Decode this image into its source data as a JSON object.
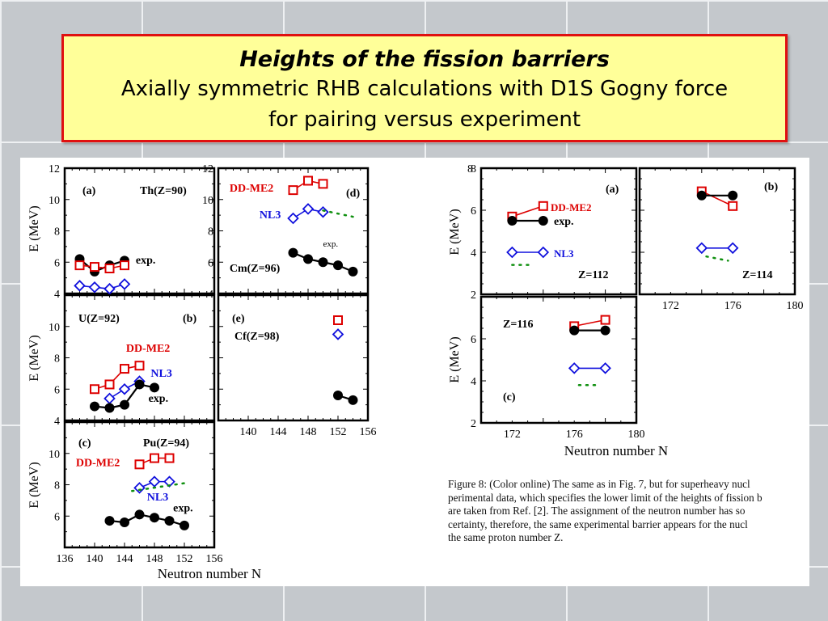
{
  "title": {
    "line1": "Heights of the fission barriers",
    "line2": "Axially symmetric RHB calculations with D1S Gogny force",
    "line3": "for pairing versus experiment"
  },
  "caption_lines": [
    "Figure 8: (Color online) The same as in Fig. 7, but for superheavy nucl",
    "perimental data, which specifies the lower limit of the heights of fission b",
    "are taken from Ref. [2].  The assignment of the neutron number has so",
    "certainty, therefore, the same experimental barrier appears for the nucl",
    "the same proton number Z."
  ],
  "colors": {
    "exp": "#000000",
    "ddme2": "#dd0000",
    "nl3": "#1010dd",
    "gogny": "#109010"
  },
  "chart_data": [
    {
      "type": "scatter",
      "group": "left",
      "xlabel": "Neutron number N",
      "ylabel": "E (MeV)",
      "xlim": [
        136,
        156
      ],
      "x_ticks": [
        "136",
        "140",
        "144",
        "148",
        "152",
        "156"
      ],
      "panels": [
        {
          "id": "a",
          "tag": "(a)",
          "label": "Th(Z=90)",
          "ylim": [
            4,
            12
          ],
          "y_ticks": [
            "4",
            "6",
            "8",
            "10",
            "12"
          ],
          "series": [
            {
              "name": "exp.",
              "marker": "circle",
              "points": [
                [
                  138,
                  6.2
                ],
                [
                  140,
                  5.4
                ],
                [
                  142,
                  5.8
                ],
                [
                  144,
                  6.1
                ]
              ]
            },
            {
              "name": "DD-ME2",
              "marker": "square",
              "points": [
                [
                  138,
                  5.8
                ],
                [
                  140,
                  5.7
                ],
                [
                  142,
                  5.6
                ],
                [
                  144,
                  5.8
                ]
              ]
            },
            {
              "name": "NL3",
              "marker": "diamond",
              "points": [
                [
                  138,
                  4.5
                ],
                [
                  140,
                  4.4
                ],
                [
                  142,
                  4.3
                ],
                [
                  144,
                  4.6
                ]
              ]
            }
          ],
          "annotations": [
            {
              "text": "exp.",
              "x": 145.5,
              "y": 5.9
            }
          ]
        },
        {
          "id": "d",
          "tag": "(d)",
          "label": "Cm(Z=96)",
          "ylim": [
            4,
            12
          ],
          "y_ticks": [
            "4",
            "6",
            "8",
            "10",
            "12"
          ],
          "series": [
            {
              "name": "DD-ME2",
              "marker": "square",
              "points": [
                [
                  146,
                  10.6
                ],
                [
                  148,
                  11.2
                ],
                [
                  150,
                  11.0
                ]
              ]
            },
            {
              "name": "NL3",
              "marker": "diamond",
              "points": [
                [
                  146,
                  8.8
                ],
                [
                  148,
                  9.4
                ],
                [
                  150,
                  9.2
                ]
              ]
            },
            {
              "name": "exp.",
              "marker": "circle",
              "points": [
                [
                  146,
                  6.6
                ],
                [
                  148,
                  6.2
                ],
                [
                  150,
                  6.0
                ],
                [
                  152,
                  5.8
                ],
                [
                  154,
                  5.4
                ]
              ]
            },
            {
              "name": "",
              "marker": "dotted",
              "points": [
                [
                  150,
                  9.3
                ],
                [
                  154,
                  8.9
                ]
              ]
            }
          ],
          "annotations": [
            {
              "text": "DD-ME2",
              "x": 137.5,
              "y": 10.5
            },
            {
              "text": "NL3",
              "x": 141.5,
              "y": 8.8
            },
            {
              "text": "exp.",
              "x": 150,
              "y": 7.0
            },
            {
              "text": "Cm(Z=96)",
              "x": 137.5,
              "y": 5.4
            }
          ]
        },
        {
          "id": "b",
          "tag": "(b)",
          "label": "U(Z=92)",
          "ylim": [
            4,
            12
          ],
          "y_ticks": [
            "4",
            "6",
            "8",
            "10"
          ],
          "series": [
            {
              "name": "DD-ME2",
              "marker": "square",
              "points": [
                [
                  140,
                  6.0
                ],
                [
                  142,
                  6.3
                ],
                [
                  144,
                  7.3
                ],
                [
                  146,
                  7.5
                ]
              ]
            },
            {
              "name": "NL3",
              "marker": "diamond",
              "points": [
                [
                  142,
                  5.4
                ],
                [
                  144,
                  6.0
                ],
                [
                  146,
                  6.5
                ]
              ]
            },
            {
              "name": "exp.",
              "marker": "circle",
              "points": [
                [
                  140,
                  4.9
                ],
                [
                  142,
                  4.8
                ],
                [
                  144,
                  5.0
                ],
                [
                  146,
                  6.3
                ],
                [
                  148,
                  6.1
                ]
              ]
            }
          ],
          "annotations": [
            {
              "text": "DD-ME2",
              "x": 144.2,
              "y": 8.4
            },
            {
              "text": "NL3",
              "x": 147.5,
              "y": 6.8
            },
            {
              "text": "exp.",
              "x": 147.2,
              "y": 5.2
            }
          ]
        },
        {
          "id": "e",
          "tag": "(e)",
          "label": "Cf(Z=98)",
          "ylim": [
            4,
            12
          ],
          "y_ticks": [],
          "series": [
            {
              "name": "DD-ME2",
              "marker": "square",
              "points": [
                [
                  152,
                  10.4
                ]
              ]
            },
            {
              "name": "NL3",
              "marker": "diamond",
              "points": [
                [
                  152,
                  9.5
                ]
              ]
            },
            {
              "name": "exp.",
              "marker": "circle",
              "points": [
                [
                  152,
                  5.6
                ],
                [
                  154,
                  5.3
                ]
              ]
            }
          ],
          "annotations": []
        },
        {
          "id": "c",
          "tag": "(c)",
          "label": "Pu(Z=94)",
          "ylim": [
            4,
            12
          ],
          "y_ticks": [
            "6",
            "8",
            "10"
          ],
          "series": [
            {
              "name": "DD-ME2",
              "marker": "square",
              "points": [
                [
                  146,
                  9.3
                ],
                [
                  148,
                  9.7
                ],
                [
                  150,
                  9.7
                ]
              ]
            },
            {
              "name": "NL3",
              "marker": "diamond",
              "points": [
                [
                  146,
                  7.8
                ],
                [
                  148,
                  8.2
                ],
                [
                  150,
                  8.2
                ]
              ]
            },
            {
              "name": "",
              "marker": "dotted",
              "points": [
                [
                  145,
                  7.6
                ],
                [
                  152,
                  8.1
                ]
              ]
            },
            {
              "name": "exp.",
              "marker": "circle",
              "points": [
                [
                  142,
                  5.7
                ],
                [
                  144,
                  5.6
                ],
                [
                  146,
                  6.1
                ],
                [
                  148,
                  5.9
                ],
                [
                  150,
                  5.7
                ],
                [
                  152,
                  5.4
                ]
              ]
            }
          ],
          "annotations": [
            {
              "text": "DD-ME2",
              "x": 137.5,
              "y": 9.2
            },
            {
              "text": "NL3",
              "x": 147,
              "y": 7.0
            },
            {
              "text": "exp.",
              "x": 150.5,
              "y": 6.3
            }
          ]
        }
      ]
    },
    {
      "type": "scatter",
      "group": "right",
      "xlabel": "Neutron number N",
      "ylabel": "E (MeV)",
      "panels": [
        {
          "id": "ra",
          "tag": "(a)",
          "label": "Z=112",
          "xlim": [
            170,
            180
          ],
          "ylim": [
            2,
            8
          ],
          "y_ticks": [
            "2",
            "4",
            "6",
            "8"
          ],
          "x_ticks": [],
          "series": [
            {
              "name": "DD-ME2",
              "marker": "square",
              "points": [
                [
                  172,
                  5.7
                ],
                [
                  174,
                  6.2
                ]
              ]
            },
            {
              "name": "exp.",
              "marker": "circle",
              "points": [
                [
                  172,
                  5.5
                ],
                [
                  174,
                  5.5
                ]
              ]
            },
            {
              "name": "NL3",
              "marker": "diamond",
              "points": [
                [
                  172,
                  4.0
                ],
                [
                  174,
                  4.0
                ]
              ]
            },
            {
              "name": "",
              "marker": "dotted",
              "points": [
                [
                  172,
                  3.4
                ],
                [
                  173.4,
                  3.4
                ]
              ]
            }
          ],
          "annotations": []
        },
        {
          "id": "rb",
          "tag": "(b)",
          "label": "Z=114",
          "xlim": [
            170,
            180
          ],
          "ylim": [
            2,
            8
          ],
          "y_ticks": [],
          "x_ticks": [
            "172",
            "176",
            "180"
          ],
          "series": [
            {
              "name": "DD-ME2",
              "marker": "square",
              "points": [
                [
                  174,
                  6.9
                ],
                [
                  176,
                  6.2
                ]
              ]
            },
            {
              "name": "exp.",
              "marker": "circle",
              "points": [
                [
                  174,
                  6.7
                ],
                [
                  176,
                  6.7
                ]
              ]
            },
            {
              "name": "NL3",
              "marker": "diamond",
              "points": [
                [
                  174,
                  4.2
                ],
                [
                  176,
                  4.2
                ]
              ]
            },
            {
              "name": "",
              "marker": "dotted",
              "points": [
                [
                  174.3,
                  3.8
                ],
                [
                  175.7,
                  3.6
                ]
              ]
            }
          ],
          "annotations": []
        },
        {
          "id": "rc",
          "tag": "(c)",
          "label": "Z=116",
          "xlim": [
            170,
            180
          ],
          "ylim": [
            2,
            8
          ],
          "y_ticks": [
            "2",
            "4",
            "6"
          ],
          "x_ticks": [
            "172",
            "176",
            "180"
          ],
          "series": [
            {
              "name": "DD-ME2",
              "marker": "square",
              "points": [
                [
                  176,
                  6.6
                ],
                [
                  178,
                  6.9
                ]
              ]
            },
            {
              "name": "exp.",
              "marker": "circle",
              "points": [
                [
                  176,
                  6.4
                ],
                [
                  178,
                  6.4
                ]
              ]
            },
            {
              "name": "NL3",
              "marker": "diamond",
              "points": [
                [
                  176,
                  4.6
                ],
                [
                  178,
                  4.6
                ]
              ]
            },
            {
              "name": "",
              "marker": "dotted",
              "points": [
                [
                  176.3,
                  3.8
                ],
                [
                  177.7,
                  3.8
                ]
              ]
            }
          ],
          "annotations": []
        }
      ]
    }
  ]
}
